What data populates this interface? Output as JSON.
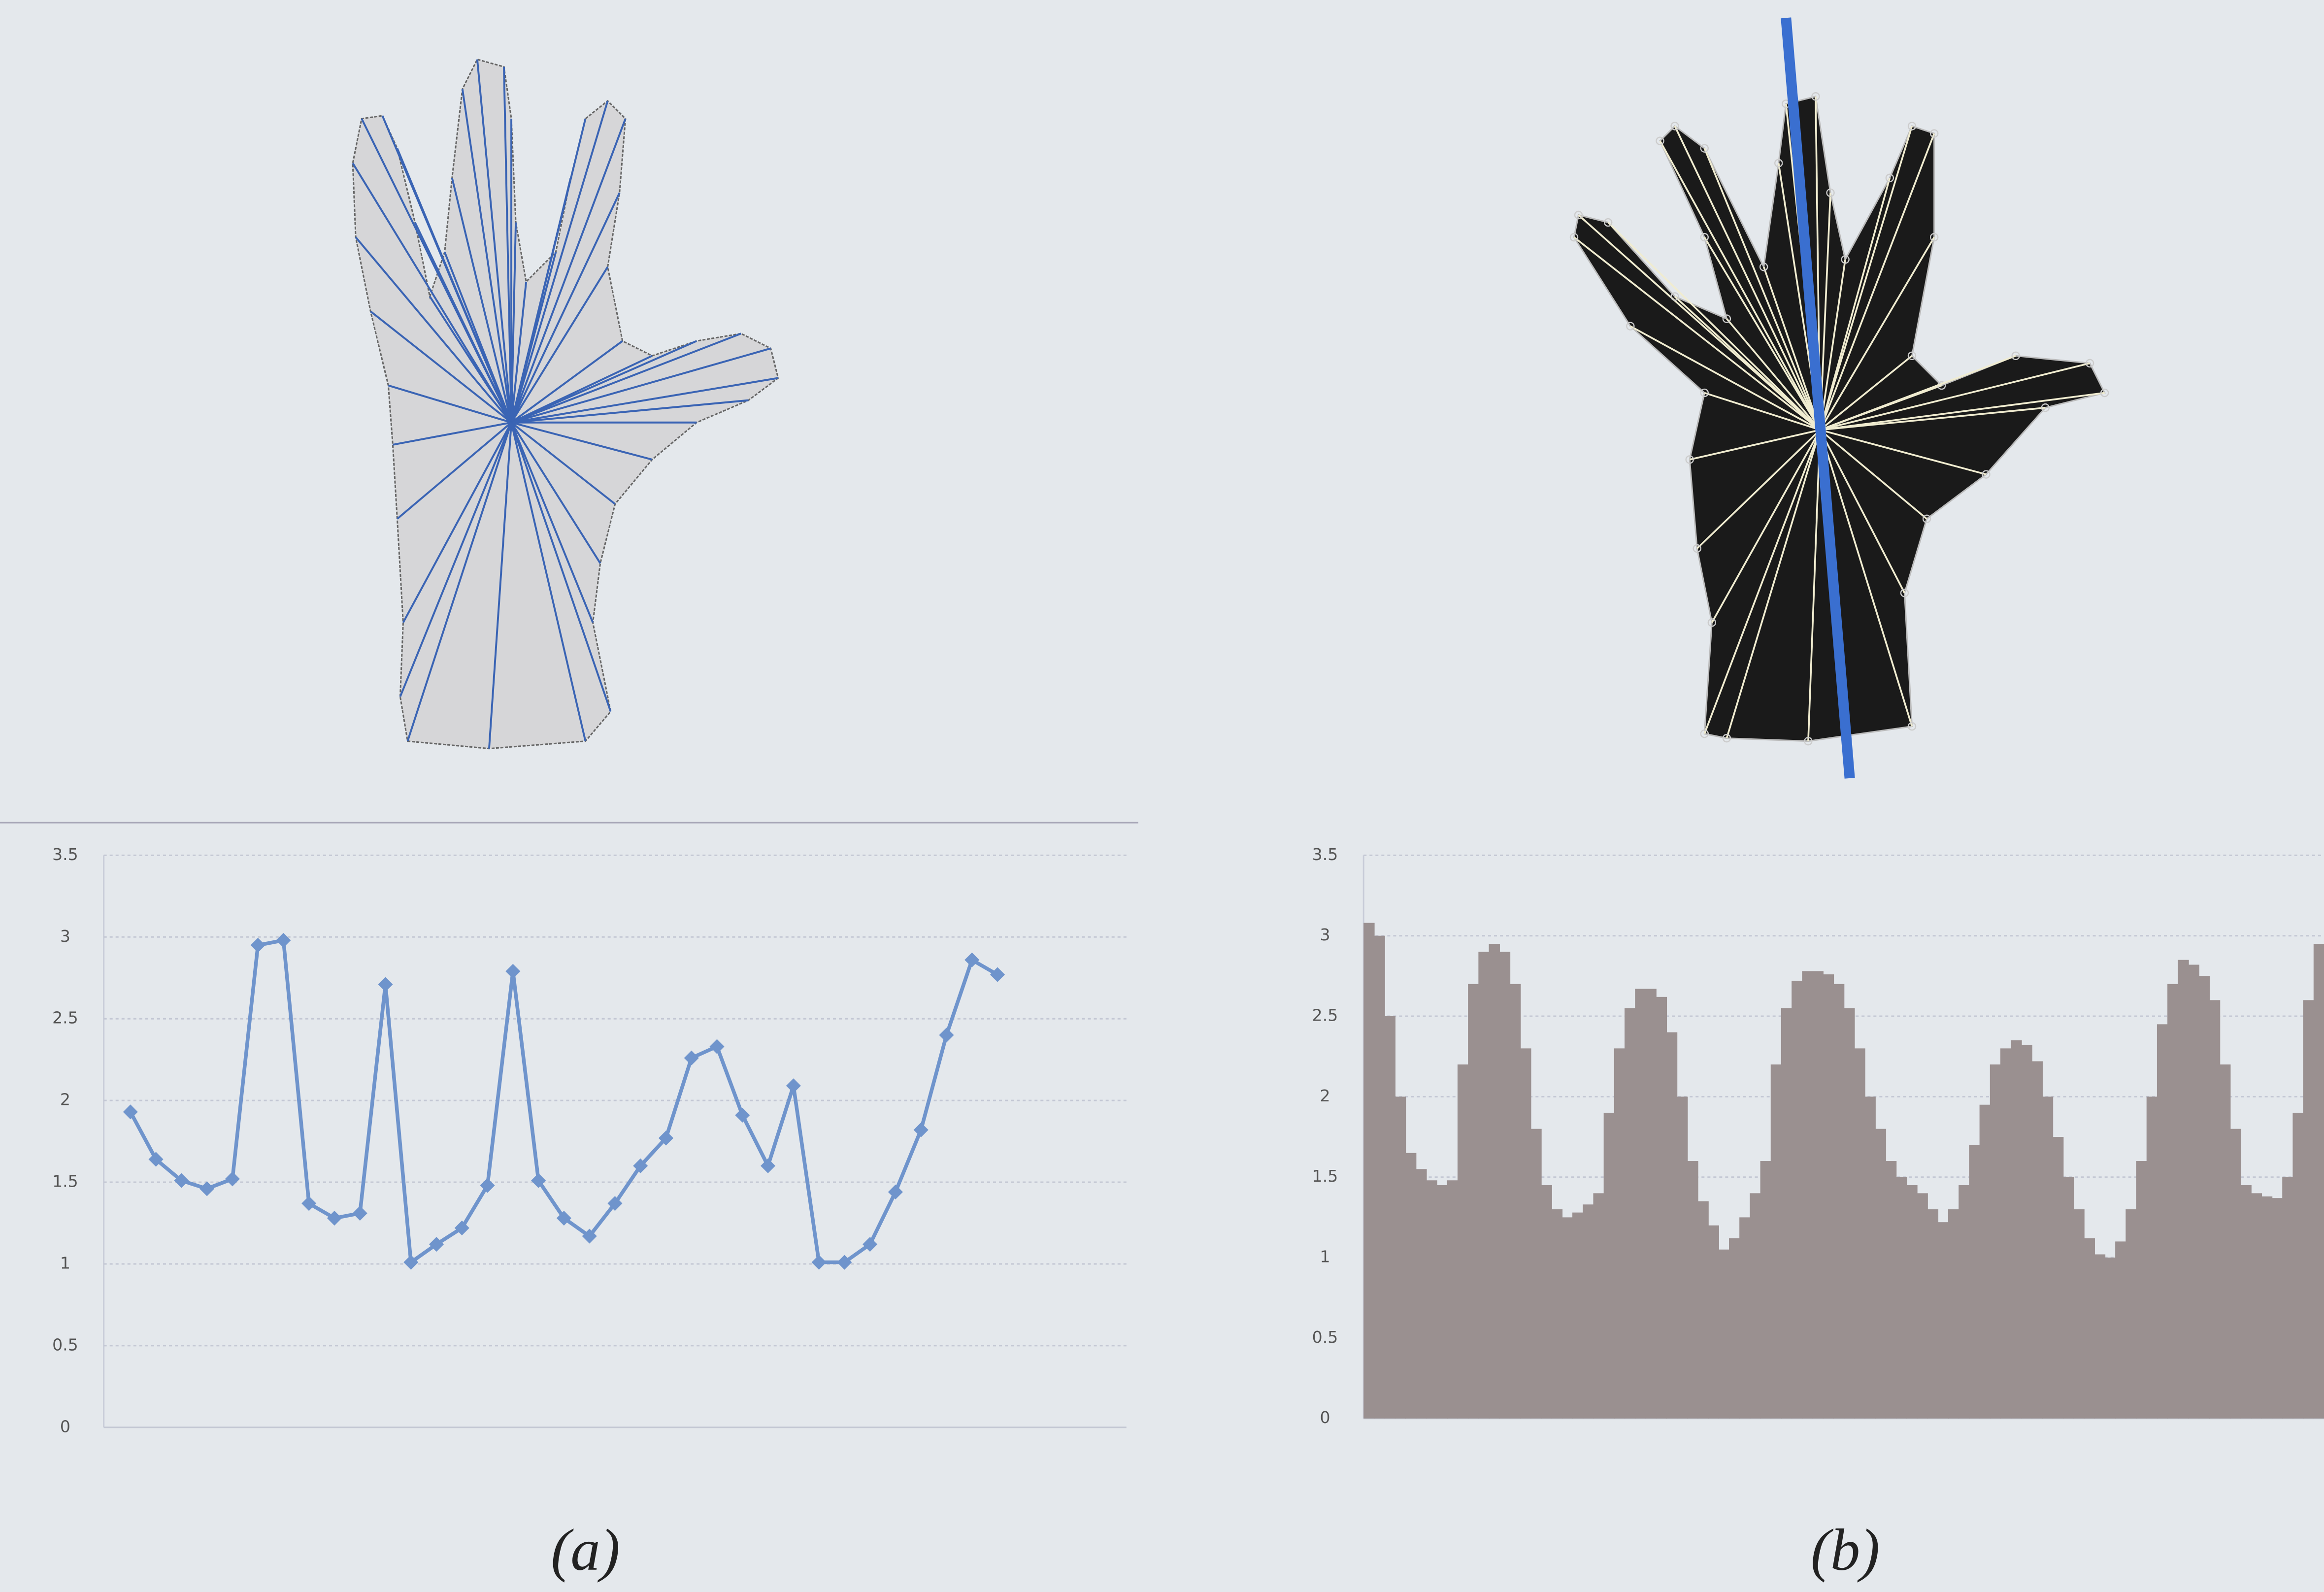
{
  "chart_data": [
    {
      "type": "line",
      "caption": "(a)",
      "color": "#6f94cc",
      "categories": [
        null,
        null,
        null,
        null,
        null,
        null,
        null,
        null,
        null,
        null,
        null,
        null,
        null,
        null,
        null,
        null,
        null,
        null,
        null,
        null,
        null,
        null,
        null,
        null,
        null,
        null,
        null,
        null,
        null,
        null,
        null,
        null,
        null,
        null,
        null
      ],
      "values": [
        1.93,
        1.64,
        1.51,
        1.46,
        1.52,
        2.95,
        2.98,
        1.37,
        1.28,
        1.31,
        2.71,
        1.01,
        1.12,
        1.22,
        1.48,
        2.79,
        1.51,
        1.28,
        1.17,
        1.37,
        1.6,
        1.77,
        2.26,
        2.33,
        1.91,
        1.6,
        2.09,
        1.01,
        1.01,
        1.12,
        1.44,
        1.82,
        2.4,
        2.86,
        2.77
      ],
      "ylim": [
        0,
        3.5
      ],
      "yticks": [
        0,
        0.5,
        1,
        1.5,
        2,
        2.5,
        3,
        3.5
      ],
      "grid": true
    },
    {
      "type": "bar",
      "caption": "(b)",
      "color": "#9a9090",
      "categories": [
        null,
        null,
        null,
        null,
        null,
        null,
        null,
        null,
        null,
        null,
        null,
        null,
        null,
        null,
        null,
        null,
        null,
        null,
        null,
        null,
        null,
        null,
        null,
        null,
        null,
        null,
        null,
        null,
        null,
        null,
        null,
        null,
        null,
        null,
        null,
        null,
        null,
        null,
        null,
        null,
        null,
        null,
        null,
        null,
        null,
        null,
        null,
        null,
        null,
        null,
        null,
        null,
        null,
        null,
        null,
        null,
        null,
        null,
        null,
        null,
        null,
        null,
        null,
        null,
        null,
        null,
        null,
        null,
        null,
        null,
        null,
        null,
        null,
        null,
        null,
        null,
        null,
        null,
        null,
        null,
        null,
        null,
        null,
        null,
        null,
        null,
        null,
        null,
        null,
        null,
        null,
        null
      ],
      "values": [
        3.08,
        3.0,
        2.5,
        2.0,
        1.65,
        1.55,
        1.48,
        1.45,
        1.48,
        2.2,
        2.7,
        2.9,
        2.95,
        2.9,
        2.7,
        2.3,
        1.8,
        1.45,
        1.3,
        1.25,
        1.28,
        1.33,
        1.4,
        1.9,
        2.3,
        2.55,
        2.67,
        2.67,
        2.62,
        2.4,
        2.0,
        1.6,
        1.35,
        1.2,
        1.05,
        1.12,
        1.25,
        1.4,
        1.6,
        2.2,
        2.55,
        2.72,
        2.78,
        2.78,
        2.76,
        2.7,
        2.55,
        2.3,
        2.0,
        1.8,
        1.6,
        1.5,
        1.45,
        1.4,
        1.3,
        1.22,
        1.3,
        1.45,
        1.7,
        1.95,
        2.2,
        2.3,
        2.35,
        2.32,
        2.22,
        2.0,
        1.75,
        1.5,
        1.3,
        1.12,
        1.02,
        1.0,
        1.1,
        1.3,
        1.6,
        2.0,
        2.45,
        2.7,
        2.85,
        2.82,
        2.75,
        2.6,
        2.2,
        1.8,
        1.45,
        1.4,
        1.38,
        1.37,
        1.5,
        1.9,
        2.6,
        2.95
      ],
      "ylim": [
        0,
        3.5
      ],
      "yticks": [
        0,
        0.5,
        1,
        1.5,
        2,
        2.5,
        3,
        3.5
      ],
      "grid": true
    }
  ]
}
